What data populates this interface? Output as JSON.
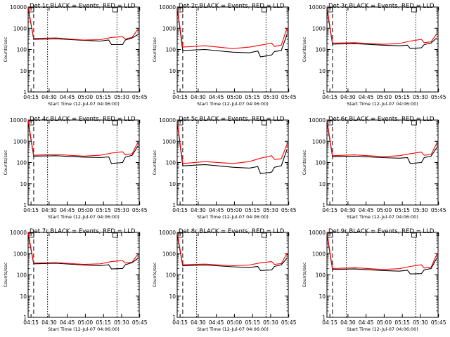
{
  "xlabel": "Start Time (12-Jul-07 04:06:00)",
  "ylabel": "Counts/sec",
  "x_tick_labels": [
    "04:15",
    "04:30",
    "04:45",
    "05:00",
    "05:15",
    "05:30",
    "05:45"
  ],
  "y_tick_labels": [
    "1",
    "10",
    "100",
    "1000",
    "10000"
  ],
  "colors": {
    "events": "#000000",
    "lld": "#ff0000"
  },
  "chart_data": [
    {
      "type": "line",
      "title": "Det 1r BLACK = Events, RED = LLD",
      "ylim": [
        1,
        10000
      ],
      "log_y": true,
      "grid": false,
      "series": [
        {
          "name": "Events",
          "values": [
            [
              0,
              9000
            ],
            [
              4,
              300
            ],
            [
              20,
              320
            ],
            [
              40,
              270
            ],
            [
              52,
              250
            ],
            [
              58,
              280
            ],
            [
              60,
              170
            ],
            [
              68,
              170
            ],
            [
              70,
              280
            ],
            [
              75,
              350
            ],
            [
              79,
              500
            ]
          ]
        },
        {
          "name": "LLD",
          "values": [
            [
              0,
              10000
            ],
            [
              4,
              330
            ],
            [
              20,
              350
            ],
            [
              40,
              280
            ],
            [
              52,
              290
            ],
            [
              60,
              370
            ],
            [
              68,
              400
            ],
            [
              70,
              310
            ],
            [
              75,
              380
            ],
            [
              79,
              900
            ]
          ]
        }
      ]
    },
    {
      "type": "line",
      "title": "Det 2r BLACK = Events, RED = LLD",
      "ylim": [
        1,
        10000
      ],
      "log_y": true,
      "grid": false,
      "series": [
        {
          "name": "Events",
          "values": [
            [
              0,
              9000
            ],
            [
              4,
              90
            ],
            [
              20,
              100
            ],
            [
              40,
              75
            ],
            [
              52,
              70
            ],
            [
              58,
              85
            ],
            [
              60,
              45
            ],
            [
              68,
              55
            ],
            [
              70,
              80
            ],
            [
              75,
              90
            ],
            [
              79,
              500
            ]
          ]
        },
        {
          "name": "LLD",
          "values": [
            [
              0,
              10000
            ],
            [
              4,
              130
            ],
            [
              20,
              150
            ],
            [
              40,
              110
            ],
            [
              52,
              130
            ],
            [
              60,
              160
            ],
            [
              68,
              200
            ],
            [
              70,
              140
            ],
            [
              75,
              160
            ],
            [
              79,
              1000
            ]
          ]
        }
      ]
    },
    {
      "type": "line",
      "title": "Det 3r BLACK = Events, RED = LLD",
      "ylim": [
        1,
        10000
      ],
      "log_y": true,
      "grid": false,
      "series": [
        {
          "name": "Events",
          "values": [
            [
              0,
              8000
            ],
            [
              4,
              180
            ],
            [
              20,
              190
            ],
            [
              40,
              160
            ],
            [
              52,
              150
            ],
            [
              58,
              160
            ],
            [
              60,
              110
            ],
            [
              68,
              120
            ],
            [
              70,
              170
            ],
            [
              75,
              200
            ],
            [
              79,
              350
            ]
          ]
        },
        {
          "name": "LLD",
          "values": [
            [
              0,
              10000
            ],
            [
              4,
              200
            ],
            [
              20,
              210
            ],
            [
              40,
              175
            ],
            [
              52,
              190
            ],
            [
              60,
              250
            ],
            [
              68,
              300
            ],
            [
              70,
              210
            ],
            [
              75,
              230
            ],
            [
              79,
              550
            ]
          ]
        }
      ]
    },
    {
      "type": "line",
      "title": "Det 4r BLACK = Events, RED = LLD",
      "ylim": [
        1,
        10000
      ],
      "log_y": true,
      "grid": false,
      "series": [
        {
          "name": "Events",
          "values": [
            [
              0,
              8000
            ],
            [
              4,
              200
            ],
            [
              20,
              210
            ],
            [
              40,
              180
            ],
            [
              52,
              170
            ],
            [
              58,
              185
            ],
            [
              60,
              90
            ],
            [
              68,
              100
            ],
            [
              70,
              180
            ],
            [
              75,
              220
            ],
            [
              79,
              600
            ]
          ]
        },
        {
          "name": "LLD",
          "values": [
            [
              0,
              10000
            ],
            [
              4,
              220
            ],
            [
              20,
              240
            ],
            [
              40,
              200
            ],
            [
              52,
              220
            ],
            [
              60,
              280
            ],
            [
              68,
              320
            ],
            [
              70,
              230
            ],
            [
              75,
              260
            ],
            [
              79,
              900
            ]
          ]
        }
      ]
    },
    {
      "type": "line",
      "title": "Det 5r BLACK = Events, RED = LLD",
      "ylim": [
        1,
        10000
      ],
      "log_y": true,
      "grid": false,
      "series": [
        {
          "name": "Events",
          "values": [
            [
              0,
              8000
            ],
            [
              4,
              70
            ],
            [
              20,
              80
            ],
            [
              40,
              60
            ],
            [
              52,
              55
            ],
            [
              58,
              65
            ],
            [
              60,
              30
            ],
            [
              68,
              35
            ],
            [
              70,
              60
            ],
            [
              75,
              70
            ],
            [
              79,
              400
            ]
          ]
        },
        {
          "name": "LLD",
          "values": [
            [
              0,
              10000
            ],
            [
              4,
              90
            ],
            [
              20,
              110
            ],
            [
              40,
              90
            ],
            [
              52,
              110
            ],
            [
              60,
              160
            ],
            [
              68,
              210
            ],
            [
              70,
              140
            ],
            [
              75,
              150
            ],
            [
              79,
              700
            ]
          ]
        }
      ]
    },
    {
      "type": "line",
      "title": "Det 6r BLACK = Events, RED = LLD",
      "ylim": [
        1,
        10000
      ],
      "log_y": true,
      "grid": false,
      "series": [
        {
          "name": "Events",
          "values": [
            [
              0,
              8000
            ],
            [
              4,
              190
            ],
            [
              20,
              200
            ],
            [
              40,
              170
            ],
            [
              52,
              160
            ],
            [
              58,
              170
            ],
            [
              60,
              90
            ],
            [
              68,
              100
            ],
            [
              70,
              170
            ],
            [
              75,
              200
            ],
            [
              79,
              500
            ]
          ]
        },
        {
          "name": "LLD",
          "values": [
            [
              0,
              10000
            ],
            [
              4,
              210
            ],
            [
              20,
              230
            ],
            [
              40,
              190
            ],
            [
              52,
              210
            ],
            [
              60,
              260
            ],
            [
              68,
              310
            ],
            [
              70,
              220
            ],
            [
              75,
              240
            ],
            [
              79,
              800
            ]
          ]
        }
      ]
    },
    {
      "type": "line",
      "title": "Det 7r BLACK = Events, RED = LLD",
      "ylim": [
        1,
        10000
      ],
      "log_y": true,
      "grid": false,
      "series": [
        {
          "name": "Events",
          "values": [
            [
              0,
              8000
            ],
            [
              4,
              330
            ],
            [
              20,
              350
            ],
            [
              40,
              290
            ],
            [
              52,
              270
            ],
            [
              58,
              300
            ],
            [
              60,
              190
            ],
            [
              68,
              200
            ],
            [
              70,
              300
            ],
            [
              75,
              380
            ],
            [
              79,
              600
            ]
          ]
        },
        {
          "name": "LLD",
          "values": [
            [
              0,
              10000
            ],
            [
              4,
              360
            ],
            [
              20,
              380
            ],
            [
              40,
              310
            ],
            [
              52,
              330
            ],
            [
              60,
              420
            ],
            [
              68,
              470
            ],
            [
              70,
              360
            ],
            [
              75,
              400
            ],
            [
              79,
              950
            ]
          ]
        }
      ]
    },
    {
      "type": "line",
      "title": "Det 8r BLACK = Events, RED = LLD",
      "ylim": [
        1,
        10000
      ],
      "log_y": true,
      "grid": false,
      "series": [
        {
          "name": "Events",
          "values": [
            [
              0,
              8000
            ],
            [
              4,
              270
            ],
            [
              20,
              290
            ],
            [
              40,
              240
            ],
            [
              52,
              220
            ],
            [
              58,
              250
            ],
            [
              60,
              160
            ],
            [
              68,
              170
            ],
            [
              70,
              250
            ],
            [
              75,
              300
            ],
            [
              79,
              600
            ]
          ]
        },
        {
          "name": "LLD",
          "values": [
            [
              0,
              10000
            ],
            [
              4,
              300
            ],
            [
              20,
              320
            ],
            [
              40,
              270
            ],
            [
              52,
              290
            ],
            [
              60,
              370
            ],
            [
              68,
              420
            ],
            [
              70,
              310
            ],
            [
              75,
              340
            ],
            [
              79,
              1000
            ]
          ]
        }
      ]
    },
    {
      "type": "line",
      "title": "Det 9r BLACK = Events, RED = LLD",
      "ylim": [
        1,
        10000
      ],
      "log_y": true,
      "grid": false,
      "series": [
        {
          "name": "Events",
          "values": [
            [
              0,
              8000
            ],
            [
              4,
              180
            ],
            [
              20,
              190
            ],
            [
              40,
              160
            ],
            [
              52,
              150
            ],
            [
              58,
              165
            ],
            [
              60,
              110
            ],
            [
              68,
              115
            ],
            [
              70,
              170
            ],
            [
              75,
              200
            ],
            [
              79,
              600
            ]
          ]
        },
        {
          "name": "LLD",
          "values": [
            [
              0,
              10000
            ],
            [
              4,
              200
            ],
            [
              20,
              215
            ],
            [
              40,
              180
            ],
            [
              52,
              195
            ],
            [
              60,
              250
            ],
            [
              68,
              300
            ],
            [
              70,
              210
            ],
            [
              75,
              230
            ],
            [
              79,
              900
            ]
          ]
        }
      ]
    }
  ]
}
